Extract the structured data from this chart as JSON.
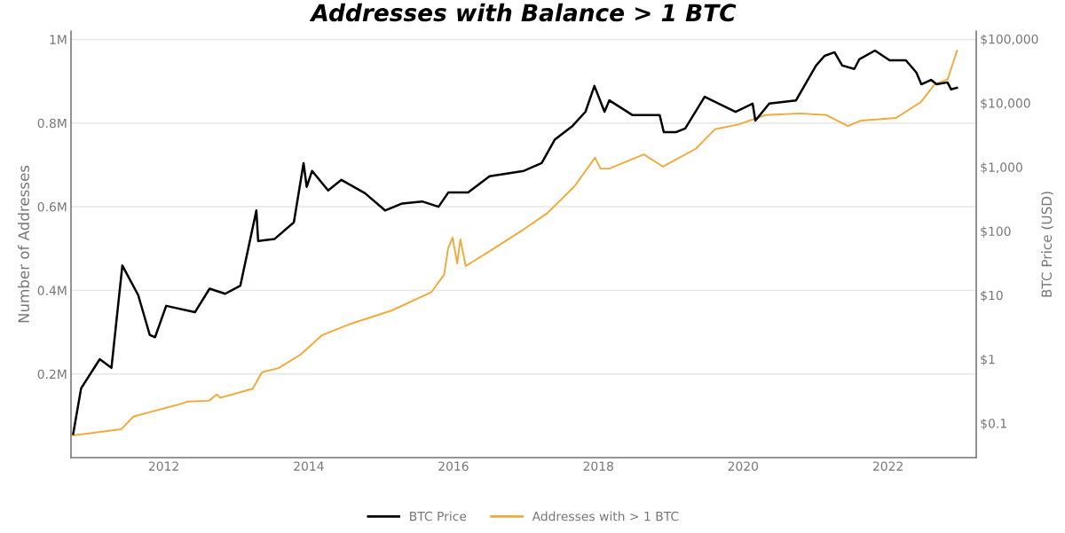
{
  "chart_data": {
    "type": "line",
    "title": "Addresses with Balance > 1 BTC",
    "ylabel": "Number of Addresses",
    "y2label": "BTC Price (USD)",
    "xlim": [
      "2010-09-20",
      "2023-03-22"
    ],
    "xticks": [
      {
        "value": "2012-01-01",
        "label": "2012"
      },
      {
        "value": "2014-01-01",
        "label": "2014"
      },
      {
        "value": "2016-01-01",
        "label": "2016"
      },
      {
        "value": "2018-01-01",
        "label": "2018"
      },
      {
        "value": "2020-01-01",
        "label": "2020"
      },
      {
        "value": "2022-01-01",
        "label": "2022"
      }
    ],
    "ylim": [
      0,
      1020000
    ],
    "yticks": [
      {
        "value": 200000,
        "label": "0.2M"
      },
      {
        "value": 400000,
        "label": "0.4M"
      },
      {
        "value": 600000,
        "label": "0.6M"
      },
      {
        "value": 800000,
        "label": "0.8M"
      },
      {
        "value": 1000000,
        "label": "1M"
      }
    ],
    "y2lim": [
      0.029,
      133000
    ],
    "y2ticks": [
      {
        "value": 0.1,
        "label": "$0.1"
      },
      {
        "value": 1,
        "label": "$1"
      },
      {
        "value": 10,
        "label": "$10"
      },
      {
        "value": 100,
        "label": "$100"
      },
      {
        "value": 1000,
        "label": "$1,000"
      },
      {
        "value": 10000,
        "label": "$10,000"
      },
      {
        "value": 100000,
        "label": "$100,000"
      }
    ],
    "log": "y2",
    "grid": "y",
    "legend": "bottom",
    "series": [
      {
        "name": "BTC Price",
        "color": "#000000",
        "axis": "y2",
        "x": [
          "2010-10-01",
          "2010-11-10",
          "2011-02-12",
          "2011-04-12",
          "2011-06-06",
          "2011-08-25",
          "2011-10-22",
          "2011-11-18",
          "2012-01-13",
          "2012-06-06",
          "2012-08-19",
          "2012-11-06",
          "2013-01-21",
          "2013-04-12",
          "2013-04-21",
          "2013-07-12",
          "2013-10-18",
          "2013-12-06",
          "2013-12-22",
          "2014-01-18",
          "2014-04-09",
          "2014-06-15",
          "2014-10-12",
          "2015-01-21",
          "2015-04-18",
          "2015-07-27",
          "2015-10-18",
          "2015-12-06",
          "2016-03-15",
          "2016-07-01",
          "2016-12-21",
          "2017-03-21",
          "2017-05-27",
          "2017-08-24",
          "2017-10-28",
          "2017-12-12",
          "2018-02-01",
          "2018-02-25",
          "2018-06-21",
          "2018-11-06",
          "2018-11-27",
          "2019-01-27",
          "2019-03-15",
          "2019-06-21",
          "2019-11-24",
          "2020-02-18",
          "2020-03-03",
          "2020-05-12",
          "2020-09-24",
          "2021-01-03",
          "2021-02-15",
          "2021-04-06",
          "2021-05-15",
          "2021-07-15",
          "2021-08-09",
          "2021-10-27",
          "2022-01-09",
          "2022-04-01",
          "2022-05-24",
          "2022-06-18",
          "2022-08-06",
          "2022-09-03",
          "2022-10-28",
          "2022-11-15",
          "2022-12-15"
        ],
        "values": [
          0.068,
          0.35,
          1.0,
          0.73,
          29,
          10,
          2.4,
          2.2,
          6.8,
          5.4,
          12.6,
          10.5,
          14,
          210,
          70,
          75,
          137,
          1150,
          490,
          870,
          430,
          630,
          390,
          210,
          270,
          290,
          240,
          400,
          400,
          720,
          870,
          1150,
          2700,
          4400,
          7300,
          18500,
          7300,
          11000,
          6500,
          6500,
          3500,
          3500,
          4000,
          12500,
          7300,
          9800,
          5300,
          9800,
          11000,
          38500,
          54500,
          62000,
          38500,
          34000,
          48000,
          66000,
          46500,
          46500,
          30000,
          19600,
          23000,
          19600,
          21000,
          16300,
          17300
        ]
      },
      {
        "name": "Addresses with > 1 BTC",
        "color": "#f2a93b",
        "axis": "y",
        "x": [
          "2010-10-01",
          "2011-06-01",
          "2011-08-01",
          "2011-11-01",
          "2012-03-01",
          "2012-05-01",
          "2012-08-15",
          "2012-09-25",
          "2012-10-12",
          "2013-03-25",
          "2013-05-10",
          "2013-08-01",
          "2013-11-20",
          "2014-03-10",
          "2014-07-20",
          "2015-02-25",
          "2015-09-10",
          "2015-11-15",
          "2015-12-05",
          "2015-12-28",
          "2016-01-20",
          "2016-02-05",
          "2016-03-03",
          "2016-06-20",
          "2016-12-12",
          "2017-04-20",
          "2017-09-03",
          "2017-12-15",
          "2018-01-12",
          "2018-02-25",
          "2018-08-18",
          "2018-11-22",
          "2019-05-06",
          "2019-08-12",
          "2019-12-12",
          "2020-04-22",
          "2020-10-15",
          "2021-02-25",
          "2021-06-12",
          "2021-08-18",
          "2022-02-10",
          "2022-06-18",
          "2022-08-25",
          "2022-10-28",
          "2022-12-15"
        ],
        "values": [
          53000,
          68000,
          98000,
          110000,
          125000,
          134000,
          136000,
          151000,
          143000,
          165000,
          204000,
          214000,
          246000,
          293000,
          318000,
          352000,
          395000,
          437000,
          500000,
          526000,
          464000,
          522000,
          458000,
          490000,
          543000,
          585000,
          649000,
          717000,
          691000,
          691000,
          725000,
          696000,
          738000,
          785000,
          797000,
          819000,
          823000,
          819000,
          793000,
          806000,
          812000,
          851000,
          893000,
          904000,
          973000
        ]
      }
    ]
  }
}
